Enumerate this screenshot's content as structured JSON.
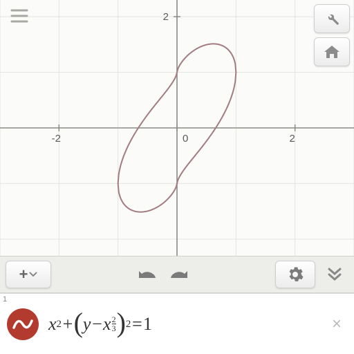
{
  "graph": {
    "type": "implicit-curve",
    "background_color": "#fbfbf9",
    "grid_color": "#e4e4e0",
    "axis_color": "#8a8a86",
    "curve_color": "#a37b80",
    "curve_stroke_width": 2,
    "xlim": [
      -3.0,
      3.0
    ],
    "ylim": [
      -2.3,
      2.3
    ],
    "x_ticks": [
      -2,
      0,
      2
    ],
    "y_ticks": [
      2
    ],
    "grid_step": 1
  },
  "toolbar": {
    "add_label": "+",
    "gear_label": "settings",
    "chevron_label": "collapse"
  },
  "equation": {
    "index": "1",
    "icon_bg": "#b33a2e",
    "icon_wave": "#ffffff",
    "display": "x^2 + (y - x^(2/3))^2 = 1",
    "pieces": {
      "x": "x",
      "plus": " + ",
      "lp": "(",
      "y": "y",
      "minus": " − ",
      "rp": ")",
      "eq": " = ",
      "one": "1",
      "sq": "2",
      "num": "2",
      "den": "3"
    }
  },
  "icons": {
    "hamburger": "menu",
    "wrench": "settings-tool",
    "home": "home",
    "undo": "undo",
    "redo": "redo",
    "gear": "gear",
    "chevrons": "chevrons-down",
    "close": "×"
  }
}
